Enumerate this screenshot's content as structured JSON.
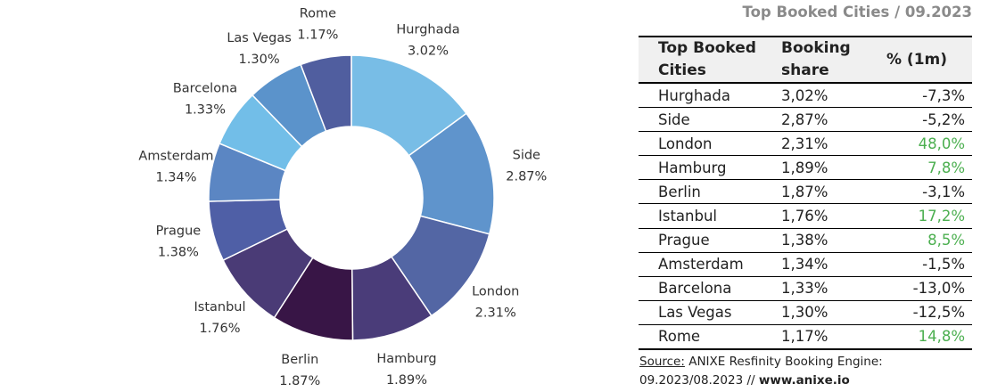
{
  "header": {
    "title": "Top Booked Cities / 09.2023"
  },
  "chart_data": {
    "type": "donut",
    "title": "",
    "categories": [
      "Hurghada",
      "Side",
      "London",
      "Hamburg",
      "Berlin",
      "Istanbul",
      "Prague",
      "Amsterdam",
      "Barcelona",
      "Las Vegas",
      "Rome"
    ],
    "values": [
      3.02,
      2.87,
      2.31,
      1.89,
      1.87,
      1.76,
      1.38,
      1.34,
      1.33,
      1.3,
      1.17
    ],
    "value_labels": [
      "3.02%",
      "2.87%",
      "2.31%",
      "1.89%",
      "1.87%",
      "1.76%",
      "1.38%",
      "1.34%",
      "1.33%",
      "1.30%",
      "1.17%"
    ],
    "colors": [
      "#78bde6",
      "#5f94cc",
      "#5366a4",
      "#4a3c79",
      "#381546",
      "#4a3b76",
      "#4f5fa6",
      "#5b86c3",
      "#72bee8",
      "#5b93cb",
      "#505e9f"
    ],
    "unit": "%"
  },
  "table": {
    "headers": [
      "Top Booked Cities",
      "Booking share",
      "% (1m)"
    ],
    "rows": [
      {
        "city": "Hurghada",
        "share": "3,02%",
        "change": "-7,3%",
        "trend": "neg"
      },
      {
        "city": "Side",
        "share": "2,87%",
        "change": "-5,2%",
        "trend": "neg"
      },
      {
        "city": "London",
        "share": "2,31%",
        "change": "48,0%",
        "trend": "pos"
      },
      {
        "city": "Hamburg",
        "share": "1,89%",
        "change": "7,8%",
        "trend": "pos"
      },
      {
        "city": "Berlin",
        "share": "1,87%",
        "change": "-3,1%",
        "trend": "neg"
      },
      {
        "city": "Istanbul",
        "share": "1,76%",
        "change": "17,2%",
        "trend": "pos"
      },
      {
        "city": "Prague",
        "share": "1,38%",
        "change": "8,5%",
        "trend": "pos"
      },
      {
        "city": "Amsterdam",
        "share": "1,34%",
        "change": "-1,5%",
        "trend": "neg"
      },
      {
        "city": "Barcelona",
        "share": "1,33%",
        "change": "-13,0%",
        "trend": "neg"
      },
      {
        "city": "Las Vegas",
        "share": "1,30%",
        "change": "-12,5%",
        "trend": "neg"
      },
      {
        "city": "Rome",
        "share": "1,17%",
        "change": "14,8%",
        "trend": "pos"
      }
    ],
    "colors": {
      "positive": "#4caf50",
      "negative": "#222222"
    }
  },
  "source": {
    "label": "Source:",
    "text": " ANIXE Resfinity Booking Engine:",
    "period": "09.2023/08.2023 // ",
    "url": "www.anixe.io"
  }
}
